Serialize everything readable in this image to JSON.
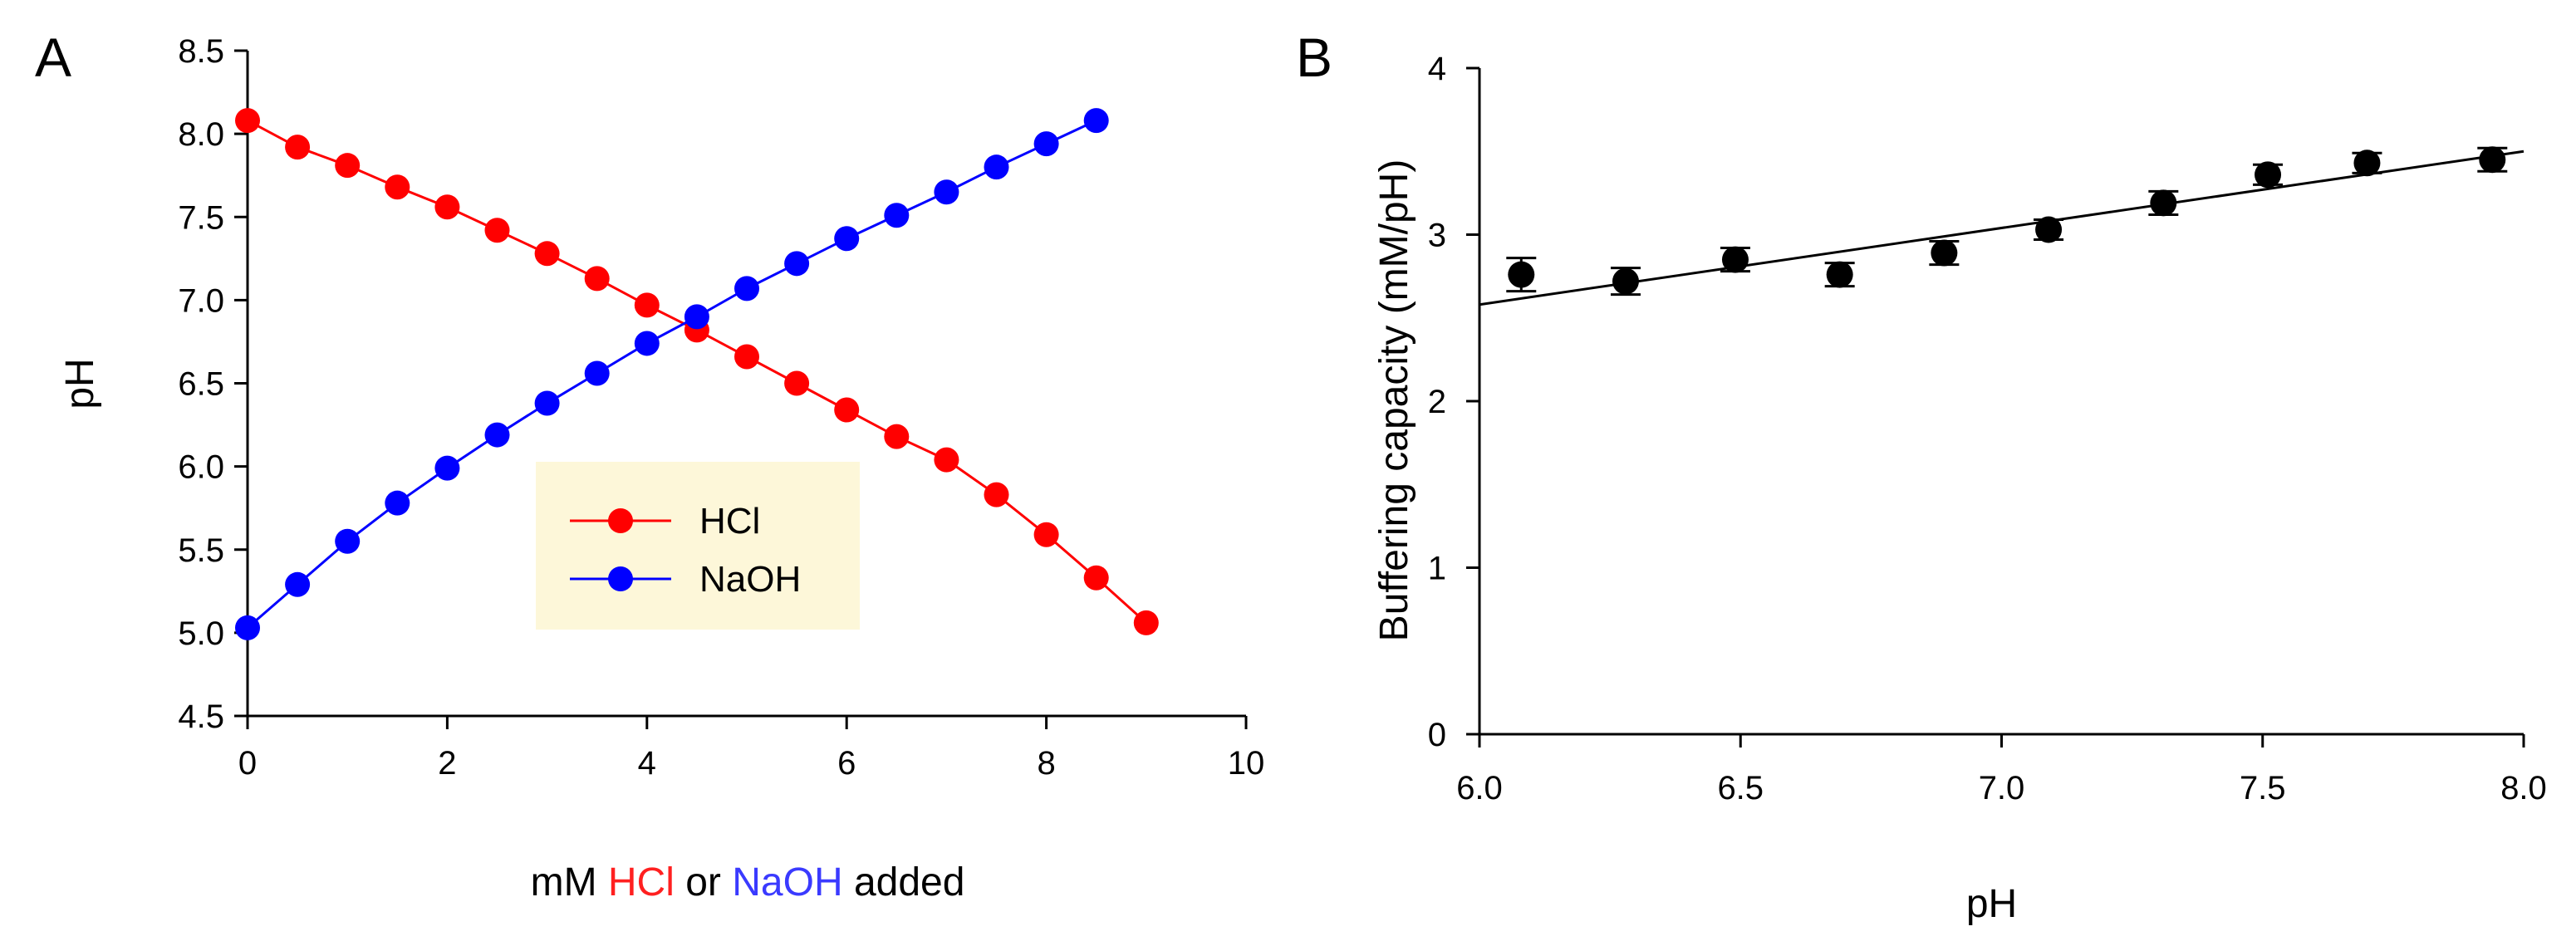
{
  "chart_data": [
    {
      "panel": "A",
      "type": "line",
      "title": "",
      "xlabel": {
        "parts": [
          {
            "text": "mM ",
            "color": "#000000"
          },
          {
            "text": "HCl",
            "color": "#ff2020"
          },
          {
            "text": " or ",
            "color": "#000000"
          },
          {
            "text": "NaOH",
            "color": "#3a3aff"
          },
          {
            "text": " added",
            "color": "#000000"
          }
        ]
      },
      "ylabel": "pH",
      "xlim": [
        0,
        10
      ],
      "ylim": [
        4.5,
        8.5
      ],
      "xticks": [
        "0",
        "2",
        "4",
        "6",
        "8",
        "10"
      ],
      "yticks": [
        "4.5",
        "5.0",
        "5.5",
        "6.0",
        "6.5",
        "7.0",
        "7.5",
        "8.0",
        "8.5"
      ],
      "legend": {
        "placement": "center-left",
        "background": "#fdf7d9"
      },
      "series": [
        {
          "name": "HCl",
          "color": "#ff0000",
          "x": [
            0,
            0.5,
            1,
            1.5,
            2,
            2.5,
            3,
            3.5,
            4,
            4.5,
            5,
            5.5,
            6,
            6.5,
            7,
            7.5,
            8,
            8.5,
            9
          ],
          "y": [
            8.08,
            7.92,
            7.81,
            7.68,
            7.56,
            7.42,
            7.28,
            7.13,
            6.97,
            6.82,
            6.66,
            6.5,
            6.34,
            6.18,
            6.04,
            5.83,
            5.59,
            5.33,
            5.06
          ]
        },
        {
          "name": "NaOH",
          "color": "#0000ff",
          "x": [
            0,
            0.5,
            1,
            1.5,
            2,
            2.5,
            3,
            3.5,
            4,
            4.5,
            5,
            5.5,
            6,
            6.5,
            7,
            7.5,
            8,
            8.5
          ],
          "y": [
            5.03,
            5.29,
            5.55,
            5.78,
            5.99,
            6.19,
            6.38,
            6.56,
            6.74,
            6.9,
            7.07,
            7.22,
            7.37,
            7.51,
            7.65,
            7.8,
            7.94,
            8.08
          ]
        }
      ]
    },
    {
      "panel": "B",
      "type": "scatter",
      "title": "",
      "xlabel": "pH",
      "ylabel": "Buffering capacity (mM/pH)",
      "xlim": [
        6.0,
        8.0
      ],
      "ylim": [
        0,
        4
      ],
      "xticks": [
        "6.0",
        "6.5",
        "7.0",
        "7.5",
        "8.0"
      ],
      "yticks": [
        "0",
        "1",
        "2",
        "3",
        "4"
      ],
      "series": [
        {
          "name": "Buffering capacity",
          "color": "#000000",
          "x": [
            6.08,
            6.28,
            6.49,
            6.69,
            6.89,
            7.09,
            7.31,
            7.51,
            7.7,
            7.94
          ],
          "y": [
            2.76,
            2.72,
            2.85,
            2.76,
            2.89,
            3.03,
            3.19,
            3.36,
            3.43,
            3.45
          ],
          "err": [
            0.1,
            0.08,
            0.07,
            0.07,
            0.07,
            0.06,
            0.07,
            0.06,
            0.06,
            0.07
          ]
        }
      ],
      "fit_line": {
        "x": [
          6.0,
          8.0
        ],
        "y": [
          2.58,
          3.5
        ],
        "color": "#000000"
      }
    }
  ]
}
